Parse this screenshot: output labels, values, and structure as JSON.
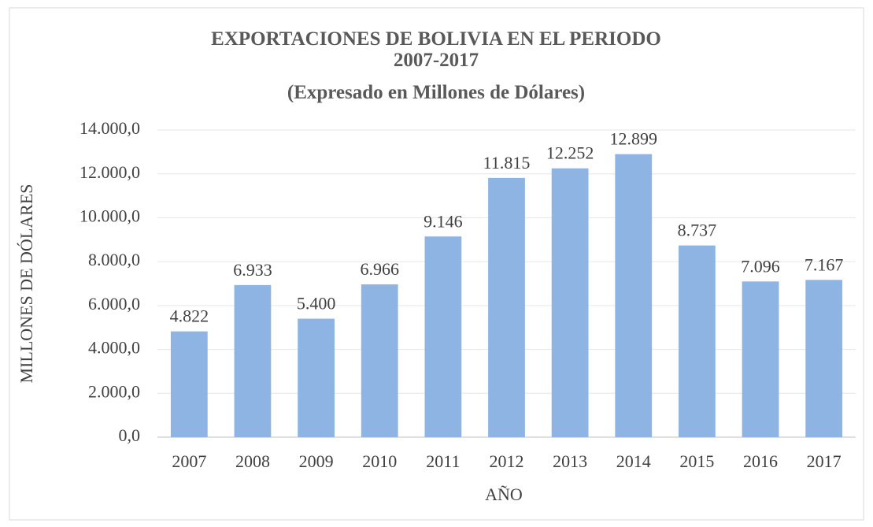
{
  "chart_data": {
    "type": "bar",
    "title": "EXPORTACIONES DE BOLIVIA EN EL PERIODO 2007-2017",
    "subtitle": "(Expresado en Millones de Dólares)",
    "x_label": "AÑO",
    "y_label": "MILLONES DE DÓLARES",
    "categories": [
      "2007",
      "2008",
      "2009",
      "2010",
      "2011",
      "2012",
      "2013",
      "2014",
      "2015",
      "2016",
      "2017"
    ],
    "values": [
      4822,
      6933,
      5400,
      6966,
      9146,
      11815,
      12252,
      12899,
      8737,
      7096,
      7167
    ],
    "value_labels": [
      "4.822",
      "6.933",
      "5.400",
      "6.966",
      "9.146",
      "11.815",
      "12.252",
      "12.899",
      "8.737",
      "7.096",
      "7.167"
    ],
    "color": "#8db4e2",
    "ylim": [
      0,
      14000
    ],
    "yticks": [
      {
        "value": 0,
        "label": "0,0"
      },
      {
        "value": 2000,
        "label": "2.000,0"
      },
      {
        "value": 4000,
        "label": "4.000,0"
      },
      {
        "value": 6000,
        "label": "6.000,0"
      },
      {
        "value": 8000,
        "label": "8.000,0"
      },
      {
        "value": 10000,
        "label": "10.000,0"
      },
      {
        "value": 12000,
        "label": "12.000,0"
      },
      {
        "value": 14000,
        "label": "14.000,0"
      }
    ],
    "grid": true
  }
}
